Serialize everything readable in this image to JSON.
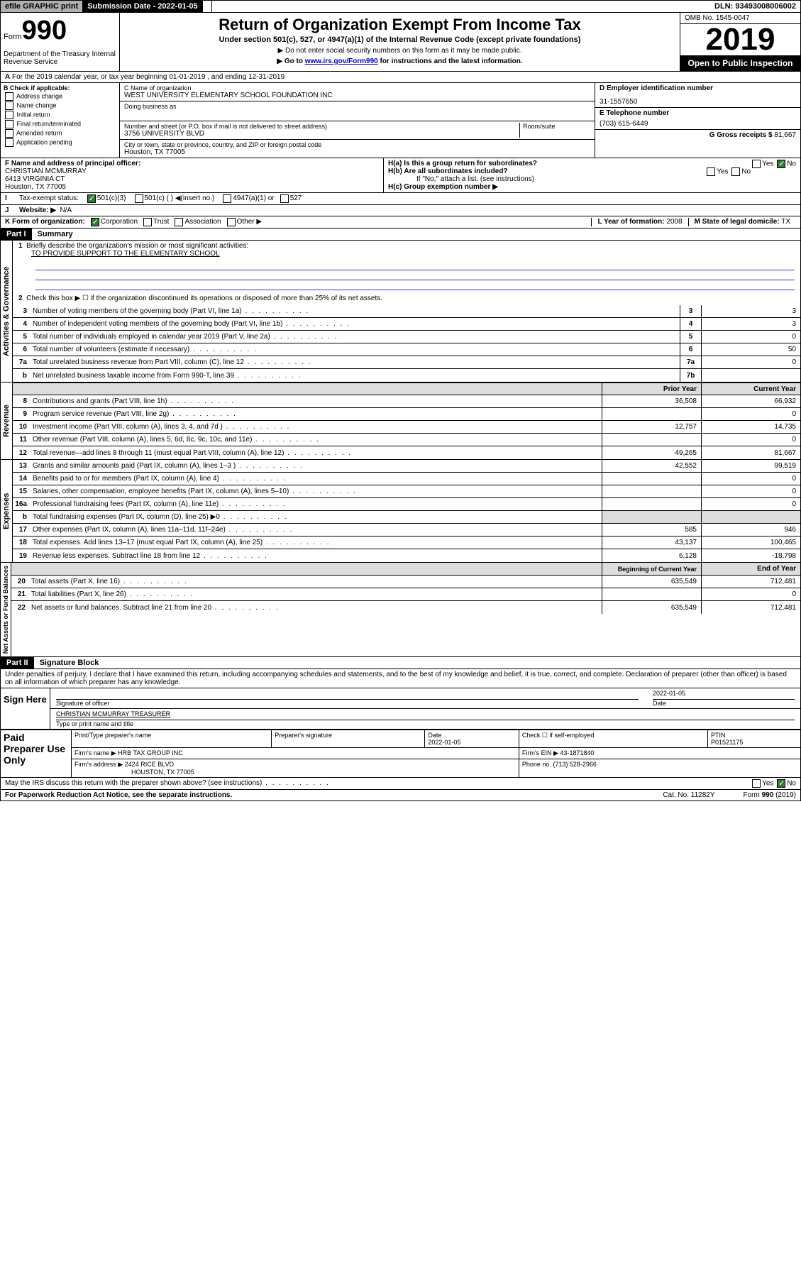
{
  "topbar": {
    "efile": "efile GRAPHIC print",
    "sub_label": "Submission Date - 2022-01-05",
    "dln": "DLN: 93493008006002"
  },
  "header": {
    "form_prefix": "Form",
    "form_num": "990",
    "dept": "Department of the Treasury Internal Revenue Service",
    "title": "Return of Organization Exempt From Income Tax",
    "subtitle": "Under section 501(c), 527, or 4947(a)(1) of the Internal Revenue Code (except private foundations)",
    "instr1": "▶ Do not enter social security numbers on this form as it may be made public.",
    "instr2_pre": "▶ Go to ",
    "instr2_link": "www.irs.gov/Form990",
    "instr2_post": " for instructions and the latest information.",
    "omb": "OMB No. 1545-0047",
    "year": "2019",
    "open": "Open to Public Inspection"
  },
  "row_a": "For the 2019 calendar year, or tax year beginning 01-01-2019     , and ending 12-31-2019",
  "section_b": {
    "label": "B Check if applicable:",
    "items": [
      "Address change",
      "Name change",
      "Initial return",
      "Final return/terminated",
      "Amended return",
      "Application pending"
    ]
  },
  "section_c": {
    "name_label": "C Name of organization",
    "name": "WEST UNIVERSITY ELEMENTARY SCHOOL FOUNDATION INC",
    "dba_label": "Doing business as",
    "addr_label": "Number and street (or P.O. box if mail is not delivered to street address)",
    "room_label": "Room/suite",
    "addr": "3756 UNIVERSITY BLVD",
    "city_label": "City or town, state or province, country, and ZIP or foreign postal code",
    "city": "Houston, TX  77005"
  },
  "section_d": {
    "ein_label": "D Employer identification number",
    "ein": "31-1557650",
    "phone_label": "E Telephone number",
    "phone": "(703) 615-6449",
    "receipts_label": "G Gross receipts $",
    "receipts": "81,667"
  },
  "section_f": {
    "label": "F  Name and address of principal officer:",
    "name": "CHRISTIAN MCMURRAY",
    "addr1": "6413 VIRGINIA CT",
    "addr2": "Houston, TX  77005"
  },
  "section_h": {
    "ha": "H(a)  Is this a group return for subordinates?",
    "hb": "H(b)  Are all subordinates included?",
    "hb_note": "If \"No,\" attach a list. (see instructions)",
    "hc": "H(c)  Group exemption number ▶"
  },
  "row_i": {
    "label": "Tax-exempt status:",
    "opts": [
      "501(c)(3)",
      "501(c) (  ) ◀(insert no.)",
      "4947(a)(1) or",
      "527"
    ]
  },
  "row_j": {
    "label": "Website: ▶",
    "val": "N/A"
  },
  "row_k": {
    "label": "K Form of organization:",
    "opts": [
      "Corporation",
      "Trust",
      "Association",
      "Other ▶"
    ],
    "l_label": "L Year of formation:",
    "l_val": "2008",
    "m_label": "M State of legal domicile:",
    "m_val": "TX"
  },
  "part1": {
    "header": "Part I",
    "title": "Summary",
    "line1_label": "Briefly describe the organization's mission or most significant activities:",
    "line1_val": "TO PROVIDE SUPPORT TO THE ELEMENTARY SCHOOL",
    "line2": "Check this box ▶ ☐  if the organization discontinued its operations or disposed of more than 25% of its net assets.",
    "sidebars": {
      "gov": "Activities & Governance",
      "rev": "Revenue",
      "exp": "Expenses",
      "net": "Net Assets or Fund Balances"
    },
    "col_prior": "Prior Year",
    "col_current": "Current Year",
    "col_begin": "Beginning of Current Year",
    "col_end": "End of Year",
    "lines_gov": [
      {
        "n": "3",
        "t": "Number of voting members of the governing body (Part VI, line 1a)",
        "b": "3",
        "v": "3"
      },
      {
        "n": "4",
        "t": "Number of independent voting members of the governing body (Part VI, line 1b)",
        "b": "4",
        "v": "3"
      },
      {
        "n": "5",
        "t": "Total number of individuals employed in calendar year 2019 (Part V, line 2a)",
        "b": "5",
        "v": "0"
      },
      {
        "n": "6",
        "t": "Total number of volunteers (estimate if necessary)",
        "b": "6",
        "v": "50"
      },
      {
        "n": "7a",
        "t": "Total unrelated business revenue from Part VIII, column (C), line 12",
        "b": "7a",
        "v": "0"
      },
      {
        "n": "b",
        "t": "Net unrelated business taxable income from Form 990-T, line 39",
        "b": "7b",
        "v": ""
      }
    ],
    "lines_rev": [
      {
        "n": "8",
        "t": "Contributions and grants (Part VIII, line 1h)",
        "p": "36,508",
        "c": "66,932"
      },
      {
        "n": "9",
        "t": "Program service revenue (Part VIII, line 2g)",
        "p": "",
        "c": "0"
      },
      {
        "n": "10",
        "t": "Investment income (Part VIII, column (A), lines 3, 4, and 7d )",
        "p": "12,757",
        "c": "14,735"
      },
      {
        "n": "11",
        "t": "Other revenue (Part VIII, column (A), lines 5, 6d, 8c, 9c, 10c, and 11e)",
        "p": "",
        "c": "0"
      },
      {
        "n": "12",
        "t": "Total revenue—add lines 8 through 11 (must equal Part VIII, column (A), line 12)",
        "p": "49,265",
        "c": "81,667"
      }
    ],
    "lines_exp": [
      {
        "n": "13",
        "t": "Grants and similar amounts paid (Part IX, column (A), lines 1–3 )",
        "p": "42,552",
        "c": "99,519"
      },
      {
        "n": "14",
        "t": "Benefits paid to or for members (Part IX, column (A), line 4)",
        "p": "",
        "c": "0"
      },
      {
        "n": "15",
        "t": "Salaries, other compensation, employee benefits (Part IX, column (A), lines 5–10)",
        "p": "",
        "c": "0"
      },
      {
        "n": "16a",
        "t": "Professional fundraising fees (Part IX, column (A), line 11e)",
        "p": "",
        "c": "0"
      },
      {
        "n": "b",
        "t": "Total fundraising expenses (Part IX, column (D), line 25) ▶0",
        "p": "shaded",
        "c": "shaded"
      },
      {
        "n": "17",
        "t": "Other expenses (Part IX, column (A), lines 11a–11d, 11f–24e)",
        "p": "585",
        "c": "946"
      },
      {
        "n": "18",
        "t": "Total expenses. Add lines 13–17 (must equal Part IX, column (A), line 25)",
        "p": "43,137",
        "c": "100,465"
      },
      {
        "n": "19",
        "t": "Revenue less expenses. Subtract line 18 from line 12",
        "p": "6,128",
        "c": "-18,798"
      }
    ],
    "lines_net": [
      {
        "n": "20",
        "t": "Total assets (Part X, line 16)",
        "p": "635,549",
        "c": "712,481"
      },
      {
        "n": "21",
        "t": "Total liabilities (Part X, line 26)",
        "p": "",
        "c": "0"
      },
      {
        "n": "22",
        "t": "Net assets or fund balances. Subtract line 21 from line 20",
        "p": "635,549",
        "c": "712,481"
      }
    ]
  },
  "part2": {
    "header": "Part II",
    "title": "Signature Block",
    "declaration": "Under penalties of perjury, I declare that I have examined this return, including accompanying schedules and statements, and to the best of my knowledge and belief, it is true, correct, and complete. Declaration of preparer (other than officer) is based on all information of which preparer has any knowledge."
  },
  "sign": {
    "label": "Sign Here",
    "sig_officer": "Signature of officer",
    "date": "2022-01-05",
    "date_label": "Date",
    "name": "CHRISTIAN MCMURRAY TREASURER",
    "name_label": "Type or print name and title"
  },
  "paid": {
    "label": "Paid Preparer Use Only",
    "h1": "Print/Type preparer's name",
    "h2": "Preparer's signature",
    "h3": "Date",
    "h3v": "2022-01-05",
    "h4": "Check ☐ if self-employed",
    "h5": "PTIN",
    "h5v": "P01521175",
    "firm_label": "Firm's name    ▶",
    "firm": "HRB TAX GROUP INC",
    "ein_label": "Firm's EIN ▶",
    "ein": "43-1871840",
    "addr_label": "Firm's address ▶",
    "addr1": "2424 RICE BLVD",
    "addr2": "HOUSTON, TX  77005",
    "phone_label": "Phone no.",
    "phone": "(713) 528-2966"
  },
  "footer": {
    "discuss": "May the IRS discuss this return with the preparer shown above? (see instructions)",
    "paperwork": "For Paperwork Reduction Act Notice, see the separate instructions.",
    "cat": "Cat. No. 11282Y",
    "form": "Form 990 (2019)"
  }
}
